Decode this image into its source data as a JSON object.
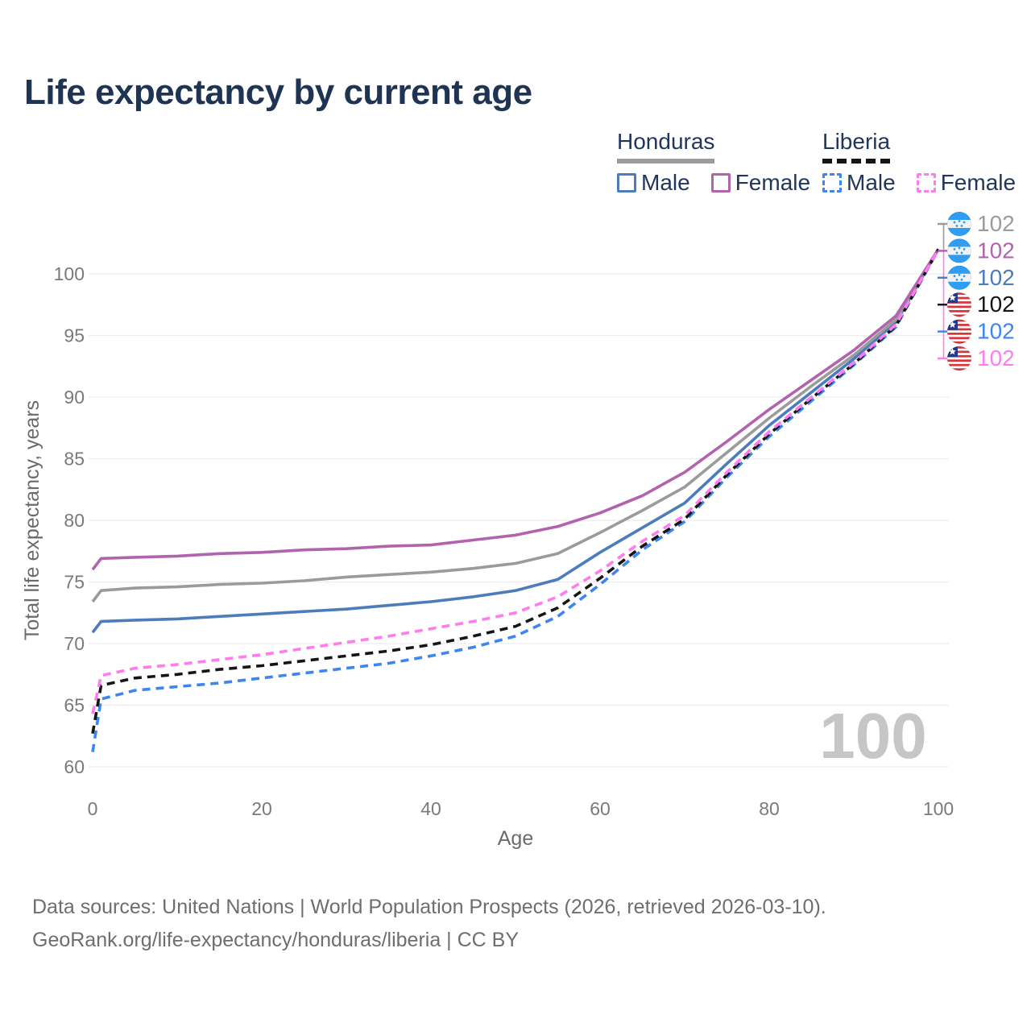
{
  "title": "Life expectancy by current age",
  "legend": {
    "groups": [
      {
        "country": "Honduras",
        "line_style": "solid",
        "items": [
          {
            "label": "Male",
            "color": "#4c7cbb"
          },
          {
            "label": "Female",
            "color": "#b163ae"
          }
        ]
      },
      {
        "country": "Liberia",
        "line_style": "dashed",
        "items": [
          {
            "label": "Male",
            "color": "#3d85f2"
          },
          {
            "label": "Female",
            "color": "#ff7cef"
          }
        ]
      }
    ]
  },
  "chart_data": {
    "type": "line",
    "title": "Life expectancy by current age",
    "xlabel": "Age",
    "ylabel": "Total life expectancy, years",
    "xlim": [
      0,
      100
    ],
    "ylim": [
      59,
      103
    ],
    "x_ticks": [
      0,
      20,
      40,
      60,
      80,
      100
    ],
    "y_ticks": [
      60,
      65,
      70,
      75,
      80,
      85,
      90,
      95,
      100
    ],
    "grid": "horizontal-only",
    "legend_position": "top-right",
    "ages": [
      0,
      1,
      5,
      10,
      15,
      20,
      25,
      30,
      35,
      40,
      45,
      50,
      55,
      60,
      65,
      70,
      75,
      80,
      85,
      90,
      95,
      100
    ],
    "series": [
      {
        "name": "Honduras Male",
        "country": "Honduras",
        "sex": "male",
        "color": "#4c7cbb",
        "dash": false,
        "values": [
          70.9,
          71.8,
          71.9,
          72.0,
          72.2,
          72.4,
          72.6,
          72.8,
          73.1,
          73.4,
          73.8,
          74.3,
          75.2,
          77.4,
          79.4,
          81.4,
          84.6,
          87.7,
          90.4,
          93.1,
          96.1,
          102
        ]
      },
      {
        "name": "Honduras Both sexes",
        "country": "Honduras",
        "sex": "both",
        "color": "#9b9b9b",
        "dash": false,
        "values": [
          73.4,
          74.3,
          74.5,
          74.6,
          74.8,
          74.9,
          75.1,
          75.4,
          75.6,
          75.8,
          76.1,
          76.5,
          77.3,
          79.0,
          80.8,
          82.7,
          85.5,
          88.3,
          90.9,
          93.4,
          96.3,
          102
        ]
      },
      {
        "name": "Honduras Female",
        "country": "Honduras",
        "sex": "female",
        "color": "#b163ae",
        "dash": false,
        "values": [
          76.0,
          76.9,
          77.0,
          77.1,
          77.3,
          77.4,
          77.6,
          77.7,
          77.9,
          78.0,
          78.4,
          78.8,
          79.5,
          80.6,
          82.0,
          83.9,
          86.4,
          89.0,
          91.4,
          93.8,
          96.6,
          102
        ]
      },
      {
        "name": "Liberia Male",
        "country": "Liberia",
        "sex": "male",
        "color": "#3d85f2",
        "dash": true,
        "values": [
          61.2,
          65.5,
          66.2,
          66.5,
          66.8,
          67.2,
          67.6,
          68.0,
          68.4,
          69.0,
          69.7,
          70.6,
          72.2,
          74.8,
          77.6,
          79.9,
          83.5,
          86.8,
          89.7,
          92.6,
          95.7,
          102
        ]
      },
      {
        "name": "Liberia Both sexes",
        "country": "Liberia",
        "sex": "both",
        "color": "#151515",
        "dash": true,
        "values": [
          62.7,
          66.6,
          67.2,
          67.5,
          67.9,
          68.2,
          68.6,
          69.0,
          69.4,
          69.9,
          70.6,
          71.4,
          72.9,
          75.3,
          77.9,
          80.1,
          83.7,
          87.0,
          89.9,
          92.7,
          95.8,
          102
        ]
      },
      {
        "name": "Liberia Female",
        "country": "Liberia",
        "sex": "female",
        "color": "#ff7cef",
        "dash": true,
        "values": [
          64.3,
          67.4,
          68.0,
          68.3,
          68.7,
          69.1,
          69.6,
          70.1,
          70.6,
          71.2,
          71.8,
          72.5,
          73.8,
          75.9,
          78.3,
          80.4,
          83.9,
          87.2,
          90.0,
          92.8,
          95.9,
          102
        ]
      }
    ],
    "end_labels": [
      {
        "flag": "honduras-flag-icon",
        "value": "102",
        "color": "#9b9b9b"
      },
      {
        "flag": "honduras-flag-icon",
        "value": "102",
        "color": "#b163ae"
      },
      {
        "flag": "honduras-flag-icon",
        "value": "102",
        "color": "#4c7cbb"
      },
      {
        "flag": "liberia-flag-icon",
        "value": "102",
        "color": "#151515"
      },
      {
        "flag": "liberia-flag-icon",
        "value": "102",
        "color": "#3d85f2"
      },
      {
        "flag": "liberia-flag-icon",
        "value": "102",
        "color": "#ff7cef"
      }
    ],
    "age_watermark": "100",
    "axis_colors": {
      "tick_label": "#7a7a7a",
      "axis_title": "#6b6b6b",
      "gridline": "#ececec",
      "watermark": "#c6c6c6"
    }
  },
  "footer": {
    "line1": "Data sources: United Nations | World Population Prospects (2026, retrieved 2026-03-10).",
    "line2": "GeoRank.org/life-expectancy/honduras/liberia | CC BY"
  }
}
